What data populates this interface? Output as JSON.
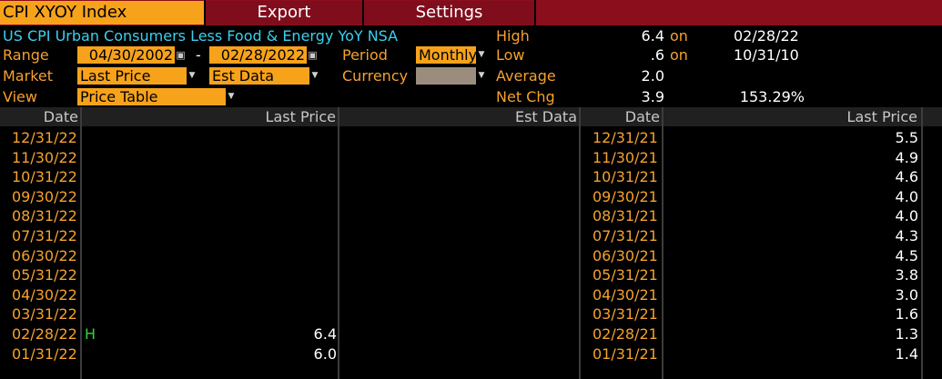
{
  "topbar": {
    "ticker": "CPI XYOY Index",
    "export": "Export",
    "settings": "Settings"
  },
  "description": "US CPI Urban Consumers Less Food & Energy YoY NSA",
  "controls": {
    "range_label": "Range",
    "range_start": "04/30/2002",
    "range_dash": "-",
    "range_end": "02/28/2022",
    "period_label": "Period",
    "period_value": "Monthly",
    "market_label": "Market",
    "market_value": "Last Price",
    "market2_value": "Est Data",
    "currency_label": "Currency",
    "currency_value": "",
    "view_label": "View",
    "view_value": "Price Table"
  },
  "stats": {
    "high_label": "High",
    "high_value": "6.4",
    "high_on": "on",
    "high_date": "02/28/22",
    "low_label": "Low",
    "low_value": ".6",
    "low_on": "on",
    "low_date": "10/31/10",
    "avg_label": "Average",
    "avg_value": "2.0",
    "netchg_label": "Net Chg",
    "netchg_value": "3.9",
    "netchg_pct": "153.29%"
  },
  "table": {
    "headers": {
      "date1": "Date",
      "last1": "Last Price",
      "est": "Est Data",
      "date2": "Date",
      "last2": "Last Price"
    },
    "left": [
      {
        "date": "12/31/22",
        "flag": "",
        "last": ""
      },
      {
        "date": "11/30/22",
        "flag": "",
        "last": ""
      },
      {
        "date": "10/31/22",
        "flag": "",
        "last": ""
      },
      {
        "date": "09/30/22",
        "flag": "",
        "last": ""
      },
      {
        "date": "08/31/22",
        "flag": "",
        "last": ""
      },
      {
        "date": "07/31/22",
        "flag": "",
        "last": ""
      },
      {
        "date": "06/30/22",
        "flag": "",
        "last": ""
      },
      {
        "date": "05/31/22",
        "flag": "",
        "last": ""
      },
      {
        "date": "04/30/22",
        "flag": "",
        "last": ""
      },
      {
        "date": "03/31/22",
        "flag": "",
        "last": ""
      },
      {
        "date": "02/28/22",
        "flag": "H",
        "last": "6.4"
      },
      {
        "date": "01/31/22",
        "flag": "",
        "last": "6.0"
      }
    ],
    "right": [
      {
        "date": "12/31/21",
        "last": "5.5"
      },
      {
        "date": "11/30/21",
        "last": "4.9"
      },
      {
        "date": "10/31/21",
        "last": "4.6"
      },
      {
        "date": "09/30/21",
        "last": "4.0"
      },
      {
        "date": "08/31/21",
        "last": "4.0"
      },
      {
        "date": "07/31/21",
        "last": "4.3"
      },
      {
        "date": "06/30/21",
        "last": "4.5"
      },
      {
        "date": "05/31/21",
        "last": "3.8"
      },
      {
        "date": "04/30/21",
        "last": "3.0"
      },
      {
        "date": "03/31/21",
        "last": "1.6"
      },
      {
        "date": "02/28/21",
        "last": "1.3"
      },
      {
        "date": "01/31/21",
        "last": "1.4"
      }
    ]
  },
  "colors": {
    "accent": "#f7a21b",
    "topbar": "#8b0e1d",
    "cyan_text": "#3ad0f0",
    "high_flag": "#39d339"
  }
}
